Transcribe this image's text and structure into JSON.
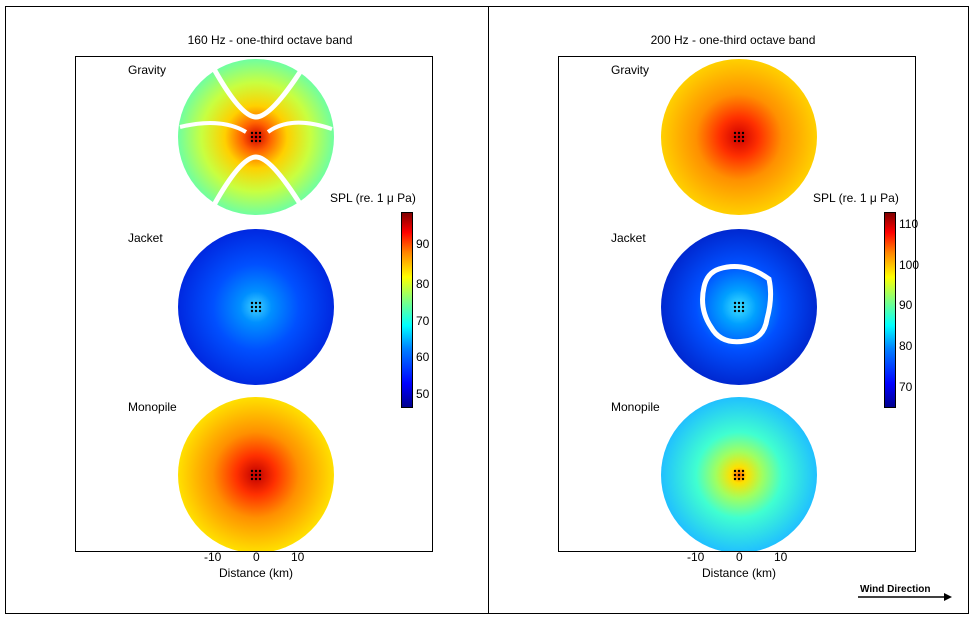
{
  "panels": [
    {
      "title": "160 Hz - one-third octave band",
      "rows": [
        "Gravity",
        "Jacket",
        "Monopile"
      ],
      "colorbar": {
        "label": "SPL (re. 1 μ Pa)",
        "ticks": [
          "90",
          "80",
          "70",
          "60",
          "50"
        ]
      },
      "x_ticks": [
        "-10",
        "0",
        "10"
      ],
      "xlabel": "Distance (km)"
    },
    {
      "title": "200 Hz - one-third octave band",
      "rows": [
        "Gravity",
        "Jacket",
        "Monopile"
      ],
      "colorbar": {
        "label": "SPL (re. 1 μ Pa)",
        "ticks": [
          "110",
          "100",
          "90",
          "80",
          "70"
        ]
      },
      "x_ticks": [
        "-10",
        "0",
        "10"
      ],
      "xlabel": "Distance (km)"
    }
  ],
  "wind_label": "Wind Direction",
  "chart_data": [
    {
      "type": "heatmap",
      "title": "160 Hz - one-third octave band",
      "xlabel": "Distance (km)",
      "x_ticks": [
        -10,
        0,
        10
      ],
      "colorbar": {
        "label": "SPL (re. 1 μ Pa)",
        "range": [
          45,
          99
        ],
        "ticks": [
          50,
          60,
          70,
          80,
          90
        ]
      },
      "maps": [
        {
          "name": "Gravity",
          "center_spl": 99,
          "edge_spl": 73
        },
        {
          "name": "Jacket",
          "center_spl": 67,
          "edge_spl": 53
        },
        {
          "name": "Monopile",
          "center_spl": 97,
          "edge_spl": 82
        }
      ]
    },
    {
      "type": "heatmap",
      "title": "200 Hz - one-third octave band",
      "xlabel": "Distance (km)",
      "x_ticks": [
        -10,
        0,
        10
      ],
      "colorbar": {
        "label": "SPL (re. 1 μ Pa)",
        "range": [
          64,
          113
        ],
        "ticks": [
          70,
          80,
          90,
          100,
          110
        ]
      },
      "maps": [
        {
          "name": "Gravity",
          "center_spl": 110,
          "edge_spl": 92
        },
        {
          "name": "Jacket",
          "center_spl": 82,
          "edge_spl": 70
        },
        {
          "name": "Monopile",
          "center_spl": 97,
          "edge_spl": 84
        }
      ]
    }
  ]
}
